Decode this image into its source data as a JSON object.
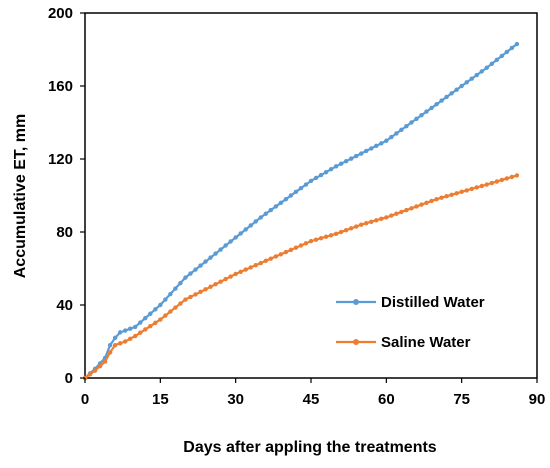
{
  "chart_data": {
    "type": "line",
    "title": "",
    "xlabel": "Days  after appling the treatments",
    "ylabel": "Accumulative ET, mm",
    "xlim": [
      0,
      90
    ],
    "ylim": [
      0,
      200
    ],
    "xticks": [
      0,
      15,
      30,
      45,
      60,
      75,
      90
    ],
    "yticks": [
      0,
      40,
      80,
      120,
      160,
      200
    ],
    "grid": false,
    "legend_position": "bottom-right",
    "series": [
      {
        "name": "Distilled Water",
        "color": "#5b9bd5",
        "marker": "circle",
        "points": [
          [
            0,
            0
          ],
          [
            2,
            5
          ],
          [
            4,
            11
          ],
          [
            5,
            18
          ],
          [
            6,
            22
          ],
          [
            7,
            25
          ],
          [
            10,
            28
          ],
          [
            15,
            40
          ],
          [
            20,
            55
          ],
          [
            25,
            66
          ],
          [
            30,
            77
          ],
          [
            35,
            88
          ],
          [
            40,
            98
          ],
          [
            45,
            108
          ],
          [
            50,
            116
          ],
          [
            55,
            123
          ],
          [
            60,
            130
          ],
          [
            65,
            140
          ],
          [
            70,
            150
          ],
          [
            75,
            160
          ],
          [
            80,
            170
          ],
          [
            86,
            183
          ]
        ]
      },
      {
        "name": "Saline Water",
        "color": "#ed7d31",
        "marker": "circle",
        "points": [
          [
            0,
            0
          ],
          [
            2,
            4
          ],
          [
            4,
            9
          ],
          [
            5,
            14
          ],
          [
            6,
            18
          ],
          [
            8,
            20
          ],
          [
            10,
            23
          ],
          [
            15,
            32
          ],
          [
            20,
            43
          ],
          [
            25,
            50
          ],
          [
            30,
            57
          ],
          [
            35,
            63
          ],
          [
            40,
            69
          ],
          [
            45,
            75
          ],
          [
            50,
            79
          ],
          [
            55,
            84
          ],
          [
            60,
            88
          ],
          [
            65,
            93
          ],
          [
            70,
            98
          ],
          [
            75,
            102
          ],
          [
            80,
            106
          ],
          [
            86,
            111
          ]
        ]
      }
    ]
  }
}
